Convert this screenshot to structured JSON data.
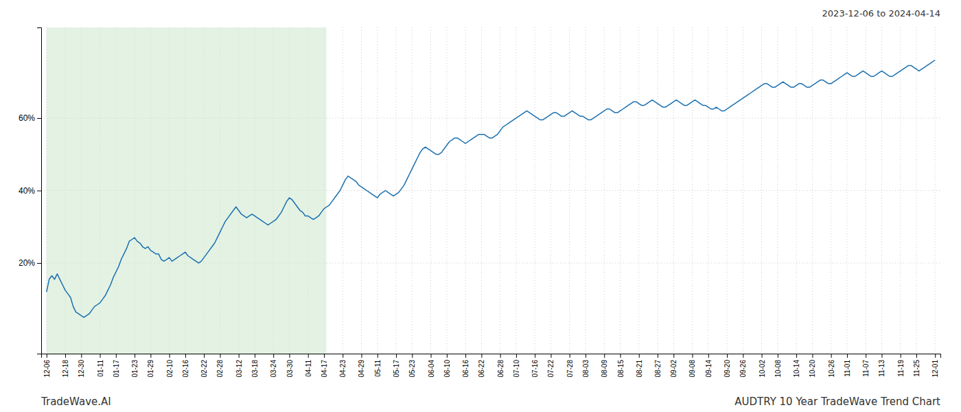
{
  "chart_data": {
    "type": "line",
    "title": "AUDTRY 10 Year TradeWave Trend Chart",
    "subtitle": "2023-12-06 to 2024-04-14",
    "annotations": [
      "TradeWave.AI"
    ],
    "color": "#1a6faf",
    "grid": true,
    "ylim": [
      -0.05,
      0.85
    ],
    "yticks": [
      {
        "value": 0.2,
        "label": "20%"
      },
      {
        "value": 0.4,
        "label": "40%"
      },
      {
        "value": 0.6,
        "label": "60%"
      }
    ],
    "highlight": {
      "start": 0,
      "end": 104.895,
      "color": "#cce8cc"
    },
    "categories": [
      "12-06",
      null,
      null,
      null,
      null,
      null,
      null,
      "12-18",
      null,
      null,
      null,
      null,
      null,
      "12-30",
      null,
      null,
      null,
      null,
      null,
      null,
      "01-11",
      null,
      null,
      null,
      null,
      null,
      "01-17",
      null,
      null,
      null,
      null,
      null,
      null,
      "01-23",
      null,
      null,
      null,
      null,
      null,
      "01-29",
      null,
      null,
      null,
      null,
      null,
      null,
      "02-10",
      null,
      null,
      null,
      null,
      null,
      "02-16",
      null,
      null,
      null,
      null,
      null,
      null,
      "02-22",
      null,
      null,
      null,
      null,
      null,
      "02-28",
      null,
      null,
      null,
      null,
      null,
      null,
      "03-12",
      null,
      null,
      null,
      null,
      null,
      "03-18",
      null,
      null,
      null,
      null,
      null,
      null,
      "03-24",
      null,
      null,
      null,
      null,
      null,
      "03-30",
      null,
      null,
      null,
      null,
      null,
      null,
      "04-11",
      null,
      null,
      null,
      null,
      null,
      "04-17",
      null,
      null,
      null,
      null,
      null,
      null,
      "04-23",
      null,
      null,
      null,
      null,
      null,
      null,
      "04-29",
      null,
      null,
      null,
      null,
      null,
      "05-11",
      null,
      null,
      null,
      null,
      null,
      null,
      "05-17",
      null,
      null,
      null,
      null,
      null,
      "05-23",
      null,
      null,
      null,
      null,
      null,
      null,
      "06-04",
      null,
      null,
      null,
      null,
      null,
      "06-10",
      null,
      null,
      null,
      null,
      null,
      null,
      "06-16",
      null,
      null,
      null,
      null,
      null,
      "06-22",
      null,
      null,
      null,
      null,
      null,
      null,
      "06-28",
      null,
      null,
      null,
      null,
      null,
      "07-10",
      null,
      null,
      null,
      null,
      null,
      null,
      "07-16",
      null,
      null,
      null,
      null,
      null,
      "07-22",
      null,
      null,
      null,
      null,
      null,
      null,
      "07-28",
      null,
      null,
      null,
      null,
      null,
      "08-03",
      null,
      null,
      null,
      null,
      null,
      null,
      "08-09",
      null,
      null,
      null,
      null,
      null,
      "08-15",
      null,
      null,
      null,
      null,
      null,
      null,
      "08-21",
      null,
      null,
      null,
      null,
      null,
      null,
      "08-27",
      null,
      null,
      null,
      null,
      null,
      "09-02",
      null,
      null,
      null,
      null,
      null,
      null,
      "09-08",
      null,
      null,
      null,
      null,
      null,
      "09-14",
      null,
      null,
      null,
      null,
      null,
      null,
      "09-20",
      null,
      null,
      null,
      null,
      null,
      "09-26",
      null,
      null,
      null,
      null,
      null,
      null,
      "10-02",
      null,
      null,
      null,
      null,
      null,
      "10-08",
      null,
      null,
      null,
      null,
      null,
      null,
      "10-14",
      null,
      null,
      null,
      null,
      null,
      "10-20",
      null,
      null,
      null,
      null,
      null,
      null,
      "10-26",
      null,
      null,
      null,
      null,
      null,
      "11-01",
      null,
      null,
      null,
      null,
      null,
      null,
      "11-07",
      null,
      null,
      null,
      null,
      null,
      "11-13",
      null,
      null,
      null,
      null,
      null,
      null,
      "11-19",
      null,
      null,
      null,
      null,
      null,
      "11-25",
      null,
      null,
      null,
      null,
      null,
      null,
      "12-01"
    ],
    "values": [
      0.12,
      0.155,
      0.165,
      0.155,
      0.17,
      0.155,
      0.14,
      0.125,
      0.115,
      0.105,
      0.08,
      0.065,
      0.06,
      0.055,
      0.05,
      0.055,
      0.06,
      0.07,
      0.08,
      0.085,
      0.09,
      0.1,
      0.11,
      0.125,
      0.14,
      0.16,
      0.175,
      0.19,
      0.21,
      0.225,
      0.24,
      0.26,
      0.265,
      0.27,
      0.26,
      0.255,
      0.245,
      0.24,
      0.245,
      0.235,
      0.23,
      0.225,
      0.225,
      0.21,
      0.205,
      0.21,
      0.215,
      0.205,
      0.21,
      0.215,
      0.22,
      0.225,
      0.23,
      0.22,
      0.215,
      0.21,
      0.205,
      0.2,
      0.205,
      0.215,
      0.225,
      0.235,
      0.245,
      0.255,
      0.27,
      0.285,
      0.3,
      0.315,
      0.325,
      0.335,
      0.345,
      0.355,
      0.345,
      0.335,
      0.33,
      0.325,
      0.33,
      0.335,
      0.33,
      0.325,
      0.32,
      0.315,
      0.31,
      0.305,
      0.31,
      0.315,
      0.32,
      0.33,
      0.34,
      0.355,
      0.37,
      0.38,
      0.375,
      0.365,
      0.355,
      0.345,
      0.34,
      0.33,
      0.33,
      0.325,
      0.32,
      0.325,
      0.33,
      0.34,
      0.35,
      0.355,
      0.36,
      0.37,
      0.38,
      0.39,
      0.4,
      0.415,
      0.43,
      0.44,
      0.435,
      0.43,
      0.425,
      0.415,
      0.41,
      0.405,
      0.4,
      0.395,
      0.39,
      0.385,
      0.38,
      0.39,
      0.395,
      0.4,
      0.395,
      0.39,
      0.385,
      0.39,
      0.395,
      0.405,
      0.415,
      0.43,
      0.445,
      0.46,
      0.475,
      0.49,
      0.505,
      0.515,
      0.52,
      0.515,
      0.51,
      0.505,
      0.5,
      0.5,
      0.505,
      0.515,
      0.525,
      0.535,
      0.54,
      0.545,
      0.545,
      0.54,
      0.535,
      0.53,
      0.535,
      0.54,
      0.545,
      0.55,
      0.555,
      0.555,
      0.555,
      0.55,
      0.545,
      0.545,
      0.55,
      0.555,
      0.565,
      0.575,
      0.58,
      0.585,
      0.59,
      0.595,
      0.6,
      0.605,
      0.61,
      0.615,
      0.62,
      0.615,
      0.61,
      0.605,
      0.6,
      0.595,
      0.595,
      0.6,
      0.605,
      0.61,
      0.615,
      0.615,
      0.61,
      0.605,
      0.605,
      0.61,
      0.615,
      0.62,
      0.615,
      0.61,
      0.605,
      0.605,
      0.6,
      0.595,
      0.595,
      0.6,
      0.605,
      0.61,
      0.615,
      0.62,
      0.625,
      0.625,
      0.62,
      0.615,
      0.615,
      0.62,
      0.625,
      0.63,
      0.635,
      0.64,
      0.645,
      0.645,
      0.64,
      0.635,
      0.635,
      0.64,
      0.645,
      0.65,
      0.645,
      0.64,
      0.635,
      0.63,
      0.63,
      0.635,
      0.64,
      0.645,
      0.65,
      0.645,
      0.64,
      0.635,
      0.635,
      0.64,
      0.645,
      0.65,
      0.645,
      0.64,
      0.635,
      0.635,
      0.63,
      0.625,
      0.625,
      0.63,
      0.625,
      0.62,
      0.62,
      0.625,
      0.63,
      0.635,
      0.64,
      0.645,
      0.65,
      0.655,
      0.66,
      0.665,
      0.67,
      0.675,
      0.68,
      0.685,
      0.69,
      0.695,
      0.695,
      0.69,
      0.685,
      0.685,
      0.69,
      0.695,
      0.7,
      0.695,
      0.69,
      0.685,
      0.685,
      0.69,
      0.695,
      0.695,
      0.69,
      0.685,
      0.685,
      0.69,
      0.695,
      0.7,
      0.705,
      0.705,
      0.7,
      0.695,
      0.695,
      0.7,
      0.705,
      0.71,
      0.715,
      0.72,
      0.725,
      0.72,
      0.715,
      0.715,
      0.72,
      0.725,
      0.73,
      0.725,
      0.72,
      0.715,
      0.715,
      0.72,
      0.725,
      0.73,
      0.725,
      0.72,
      0.715,
      0.715,
      0.72,
      0.725,
      0.73,
      0.735,
      0.74,
      0.745,
      0.745,
      0.74,
      0.735,
      0.73,
      0.735,
      0.74,
      0.745,
      0.75,
      0.755,
      0.76
    ]
  }
}
